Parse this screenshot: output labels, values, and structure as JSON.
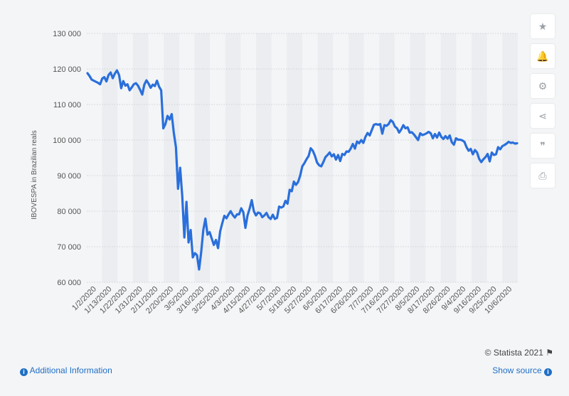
{
  "colors": {
    "line": "#2a6fdb",
    "band": "#ebedf0",
    "grid": "#cfd3d8"
  },
  "sidebar": [
    {
      "name": "star-icon",
      "glyph": "★"
    },
    {
      "name": "bell-icon",
      "glyph": "🔔"
    },
    {
      "name": "gear-icon",
      "glyph": "⚙"
    },
    {
      "name": "share-icon",
      "glyph": "⋖"
    },
    {
      "name": "quote-icon",
      "glyph": "❞"
    },
    {
      "name": "print-icon",
      "glyph": "⎙"
    }
  ],
  "footer": {
    "credit": "© Statista 2021",
    "additional_info": "Additional Information",
    "show_source": "Show source"
  },
  "chart_data": {
    "type": "line",
    "title": "",
    "ylabel": "IBOVESPA in Brazilian reals",
    "xlabel": "",
    "ylim": [
      60000,
      130000
    ],
    "yticks": [
      60000,
      70000,
      80000,
      90000,
      100000,
      110000,
      120000,
      130000
    ],
    "ytick_labels": [
      "60 000",
      "70 000",
      "80 000",
      "90 000",
      "100 000",
      "110 000",
      "120 000",
      "130 000"
    ],
    "xtick_labels": [
      "1/2/2020",
      "1/13/2020",
      "1/22/2020",
      "1/31/2020",
      "2/11/2020",
      "2/20/2020",
      "3/5/2020",
      "3/16/2020",
      "3/25/2020",
      "4/3/2020",
      "4/15/2020",
      "4/27/2020",
      "5/7/2020",
      "5/18/2020",
      "5/27/2020",
      "6/5/2020",
      "6/17/2020",
      "6/26/2020",
      "7/7/2020",
      "7/16/2020",
      "7/27/2020",
      "8/5/2020",
      "8/17/2020",
      "8/26/2020",
      "9/4/2020",
      "9/16/2020",
      "9/25/2020",
      "10/6/2020"
    ],
    "grid": true,
    "legend": "none",
    "series": [
      {
        "values": [
          118800,
          118000,
          117000,
          116700,
          116400,
          116100,
          115700,
          117300,
          117700,
          116500,
          118300,
          119000,
          117400,
          118700,
          119600,
          118300,
          114600,
          116600,
          115300,
          115700,
          114000,
          114800,
          115700,
          116000,
          115300,
          114100,
          112800,
          115600,
          116800,
          115900,
          114700,
          115600,
          115200,
          116700,
          115000,
          114000,
          103300,
          104500,
          106800,
          105800,
          107300,
          102000,
          98000,
          86300,
          92200,
          84200,
          72600,
          82600,
          71200,
          74700,
          67000,
          68200,
          67600,
          63600,
          68500,
          74700,
          77900,
          73400,
          74100,
          72300,
          70500,
          71900,
          69600,
          74300,
          76600,
          78700,
          78000,
          79100,
          80000,
          78900,
          78200,
          79100,
          79100,
          80800,
          79700,
          75300,
          78800,
          80700,
          83100,
          80000,
          78800,
          79600,
          79400,
          78300,
          78800,
          79500,
          78300,
          77800,
          79000,
          77800,
          78100,
          81300,
          81000,
          81300,
          82900,
          82100,
          86000,
          85600,
          88300,
          87400,
          88200,
          90000,
          92600,
          93500,
          94600,
          95500,
          97700,
          97000,
          95600,
          93700,
          92900,
          92600,
          93800,
          95200,
          95800,
          96500,
          95400,
          96000,
          94500,
          95800,
          94100,
          96100,
          95800,
          96800,
          96700,
          97600,
          98900,
          97600,
          99600,
          99100,
          100000,
          99200,
          100900,
          102000,
          101300,
          102800,
          104300,
          104500,
          104300,
          104500,
          101800,
          104200,
          104000,
          104500,
          105600,
          105100,
          103800,
          103300,
          102100,
          103000,
          104200,
          103300,
          103600,
          102100,
          102200,
          101600,
          100800,
          100000,
          101900,
          101400,
          101600,
          101900,
          102300,
          101900,
          100500,
          101700,
          100700,
          102100,
          100900,
          100300,
          101100,
          100400,
          101300,
          99400,
          98700,
          100500,
          100100,
          100100,
          99900,
          99500,
          98000,
          97000,
          97500,
          96000,
          97200,
          96500,
          94700,
          93800,
          94600,
          95200,
          96100,
          94000,
          96500,
          95800,
          96000,
          98000,
          97400,
          98300,
          98600,
          99000,
          99500,
          99200,
          99300,
          99000,
          99100
        ]
      }
    ]
  }
}
